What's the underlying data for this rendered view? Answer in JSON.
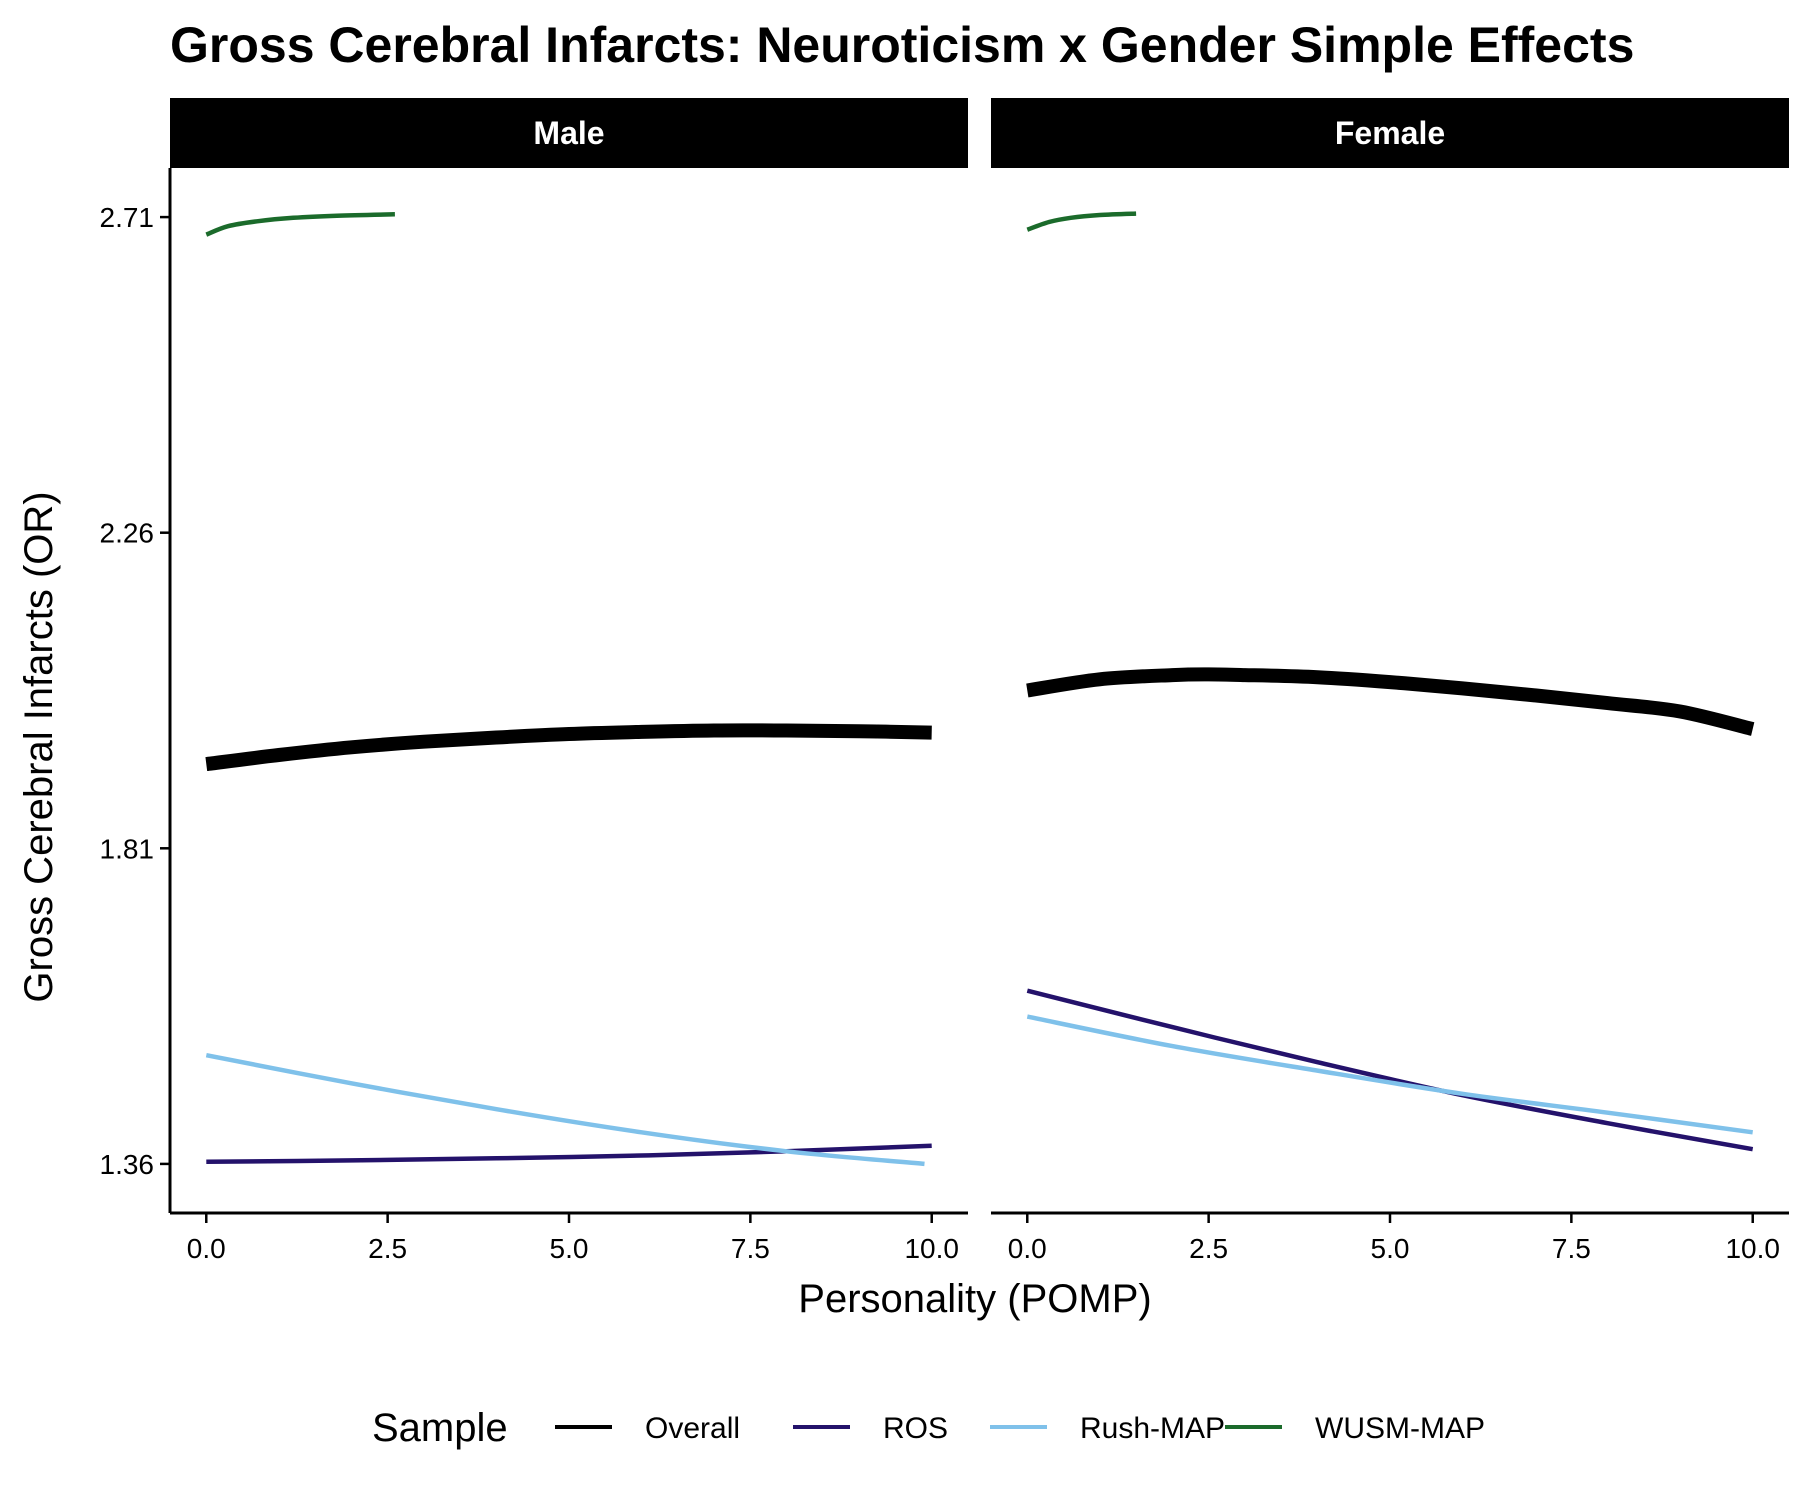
{
  "chart_data": {
    "type": "line",
    "title": "Gross Cerebral Infarcts: Neuroticism x Gender Simple Effects",
    "xlabel": "Personality (POMP)",
    "ylabel": "Gross Cerebral Infarcts (OR)",
    "xlim": [
      -0.5,
      10.5
    ],
    "ylim": [
      1.29,
      2.78
    ],
    "x_ticks": [
      0,
      2.5,
      5,
      7.5,
      10
    ],
    "x_tick_labels": [
      "0.0",
      "2.5",
      "5.0",
      "7.5",
      "10.0"
    ],
    "y_ticks": [
      1.36,
      1.81,
      2.26,
      2.71
    ],
    "y_tick_labels": [
      "1.36",
      "1.81",
      "2.26",
      "2.71"
    ],
    "grid": false,
    "legend": {
      "title": "Sample",
      "position": "bottom",
      "entries": [
        "Overall",
        "ROS",
        "Rush-MAP",
        "WUSM-MAP"
      ]
    },
    "colors": {
      "Overall": "#000000",
      "ROS": "#24126b",
      "Rush-MAP": "#7fc1ea",
      "WUSM-MAP": "#1b6b2b"
    },
    "panels": [
      {
        "label": "Male",
        "series": [
          {
            "name": "Overall",
            "x": [
              0,
              1,
              2,
              3,
              4,
              5,
              6,
              7,
              8,
              9,
              10
            ],
            "y": [
              1.93,
              1.943,
              1.954,
              1.962,
              1.968,
              1.973,
              1.976,
              1.978,
              1.978,
              1.977,
              1.975
            ]
          },
          {
            "name": "ROS",
            "x": [
              0,
              2,
              4,
              6,
              8,
              10
            ],
            "y": [
              1.363,
              1.365,
              1.368,
              1.372,
              1.378,
              1.386
            ]
          },
          {
            "name": "Rush-MAP",
            "x": [
              0,
              2,
              4,
              6,
              8,
              9.9
            ],
            "y": [
              1.515,
              1.475,
              1.438,
              1.405,
              1.378,
              1.36
            ]
          },
          {
            "name": "WUSM-MAP",
            "x": [
              0,
              0.3,
              0.7,
              1.2,
              1.8,
              2.6
            ],
            "y": [
              2.685,
              2.697,
              2.704,
              2.709,
              2.712,
              2.714
            ]
          }
        ]
      },
      {
        "label": "Female",
        "series": [
          {
            "name": "Overall",
            "x": [
              0,
              1,
              2,
              2.5,
              3,
              4,
              5,
              6,
              7,
              8,
              9,
              10
            ],
            "y": [
              2.035,
              2.051,
              2.057,
              2.058,
              2.057,
              2.054,
              2.047,
              2.038,
              2.028,
              2.017,
              2.005,
              1.98
            ]
          },
          {
            "name": "ROS",
            "x": [
              0,
              2,
              4,
              6,
              8,
              10
            ],
            "y": [
              1.607,
              1.555,
              1.505,
              1.458,
              1.418,
              1.381
            ]
          },
          {
            "name": "Rush-MAP",
            "x": [
              0,
              2,
              4,
              6,
              8,
              10
            ],
            "y": [
              1.57,
              1.528,
              1.493,
              1.46,
              1.433,
              1.405
            ]
          },
          {
            "name": "WUSM-MAP",
            "x": [
              0,
              0.3,
              0.6,
              1.0,
              1.5
            ],
            "y": [
              2.692,
              2.703,
              2.709,
              2.713,
              2.715
            ]
          }
        ]
      }
    ]
  }
}
